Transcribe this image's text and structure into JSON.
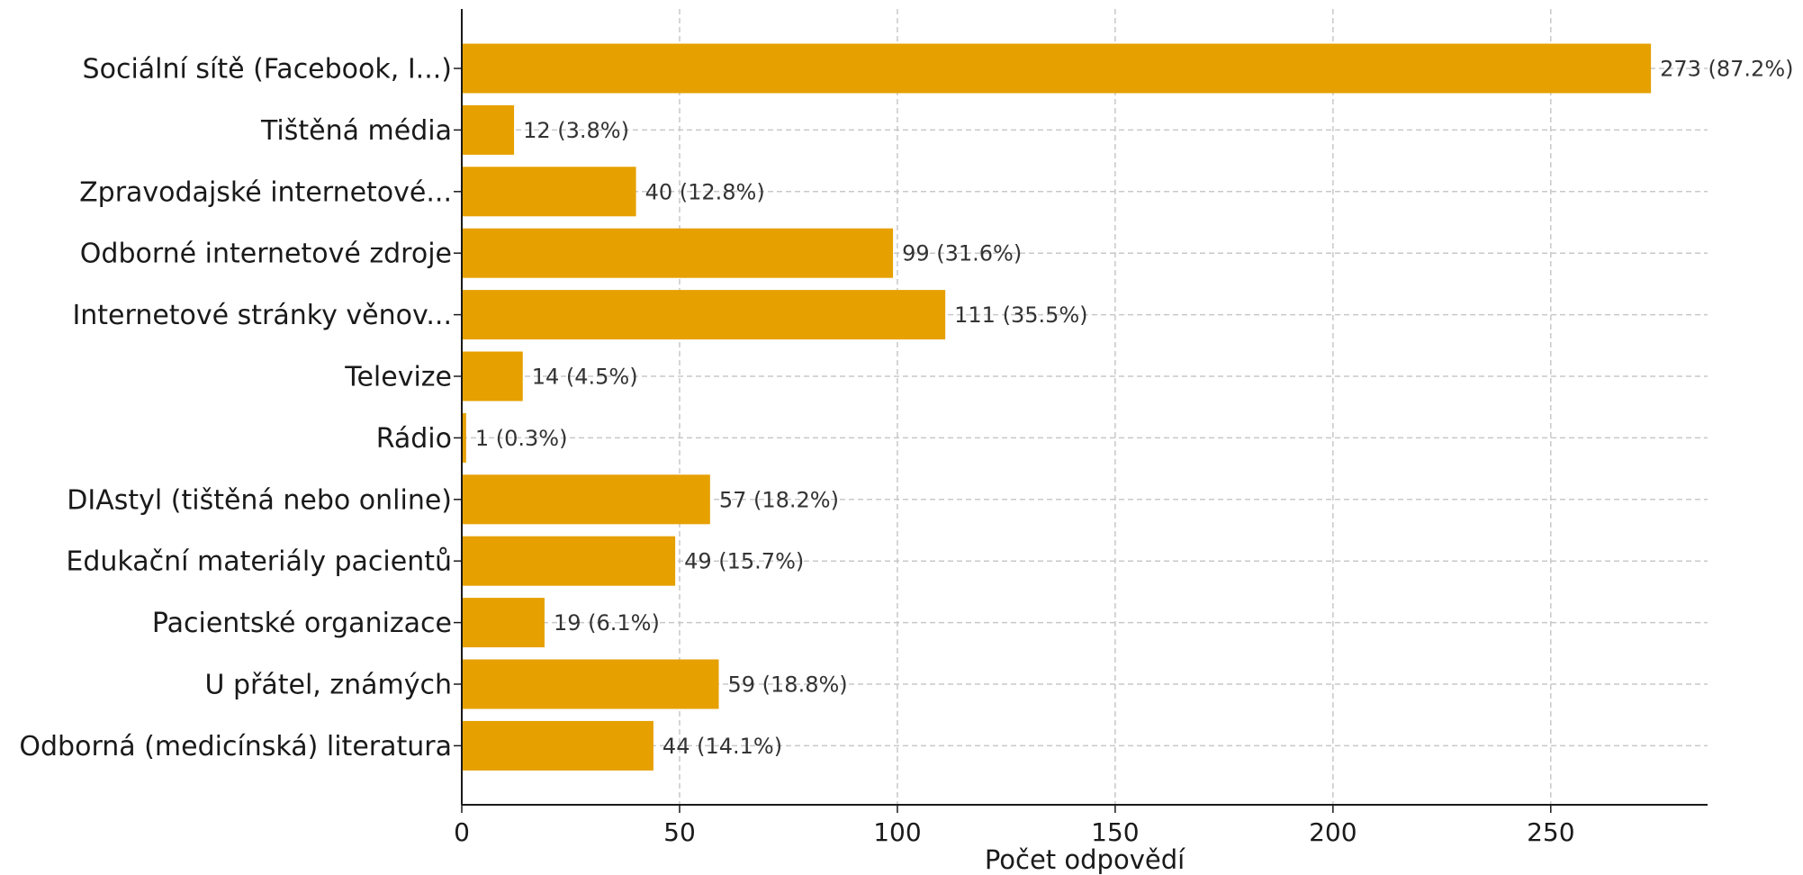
{
  "chart_data": {
    "type": "bar",
    "orientation": "horizontal",
    "title": "",
    "xlabel": "Počet odpovědí",
    "ylabel": "",
    "xlim": [
      0,
      286
    ],
    "xticks": [
      0,
      50,
      100,
      150,
      200,
      250
    ],
    "grid": true,
    "bar_color": "#e6a000",
    "categories": [
      "Sociální sítě (Facebook, I...)",
      "Tištěná média",
      "Zpravodajské internetové...",
      "Odborné internetové zdroje",
      "Internetové stránky věnov...",
      "Televize",
      "Rádio",
      "DIAstyl (tištěná nebo online)",
      "Edukační materiály pacientů",
      "Pacientské organizace",
      "U přátel, známých",
      "Odborná (medicínská) literatura"
    ],
    "values": [
      273,
      12,
      40,
      99,
      111,
      14,
      1,
      57,
      49,
      19,
      59,
      44
    ],
    "data_labels": [
      "273 (87.2%)",
      "12 (3.8%)",
      "40 (12.8%)",
      "99 (31.6%)",
      "111 (35.5%)",
      "14 (4.5%)",
      "1 (0.3%)",
      "57 (18.2%)",
      "49 (15.7%)",
      "19 (6.1%)",
      "59 (18.8%)",
      "44 (14.1%)"
    ]
  }
}
